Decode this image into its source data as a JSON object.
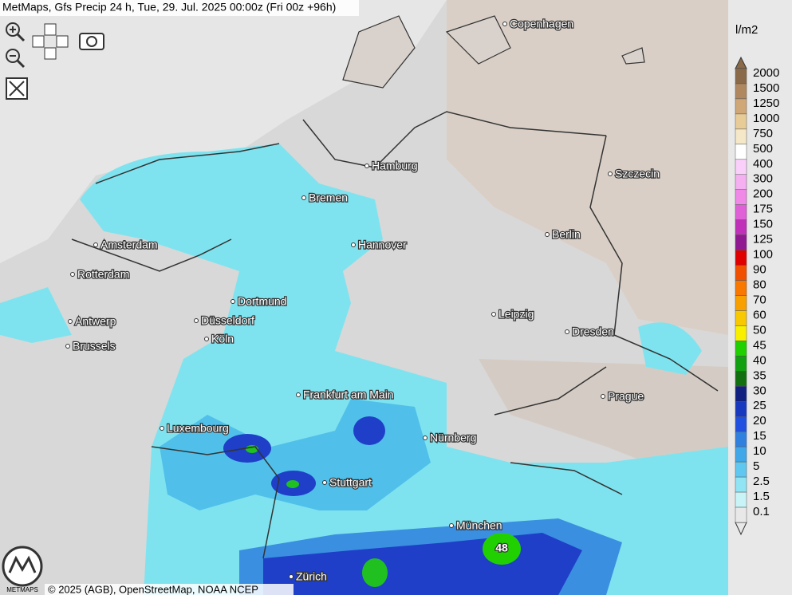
{
  "header": {
    "title": "MetMaps, Gfs Precip 24 h, Tue, 29. Jul. 2025 00:00z (Fri 00z +96h)"
  },
  "cities": [
    "Copenhagen",
    "Hamburg",
    "Szczecin",
    "Bremen",
    "Amsterdam",
    "Hannover",
    "Berlin",
    "Rotterdam",
    "Dortmund",
    "Leipzig",
    "Antwerp",
    "Düsseldorf",
    "Dresden",
    "Brussels",
    "Köln",
    "Prague",
    "Frankfurt am Main",
    "Luxembourg",
    "Nürnberg",
    "Stuttgart",
    "München",
    "Zürich"
  ],
  "peak_label": "48",
  "legend": {
    "unit": "l/m2",
    "items": [
      {
        "label": "2000",
        "color": "#8a6a48"
      },
      {
        "label": "1500",
        "color": "#b08860"
      },
      {
        "label": "1250",
        "color": "#d0a878"
      },
      {
        "label": "1000",
        "color": "#e8cc98"
      },
      {
        "label": "750",
        "color": "#f4e8c8"
      },
      {
        "label": "500",
        "color": "#ffffff"
      },
      {
        "label": "400",
        "color": "#fad0fa"
      },
      {
        "label": "300",
        "color": "#f4b0f0"
      },
      {
        "label": "200",
        "color": "#f088e8"
      },
      {
        "label": "175",
        "color": "#e060d8"
      },
      {
        "label": "150",
        "color": "#c030b8"
      },
      {
        "label": "125",
        "color": "#901890"
      },
      {
        "label": "100",
        "color": "#e00000"
      },
      {
        "label": "90",
        "color": "#f05000"
      },
      {
        "label": "80",
        "color": "#f87800"
      },
      {
        "label": "70",
        "color": "#f8a000"
      },
      {
        "label": "60",
        "color": "#f8c800"
      },
      {
        "label": "50",
        "color": "#f8f000"
      },
      {
        "label": "45",
        "color": "#20d000"
      },
      {
        "label": "40",
        "color": "#10a010"
      },
      {
        "label": "35",
        "color": "#107010"
      },
      {
        "label": "30",
        "color": "#102080"
      },
      {
        "label": "25",
        "color": "#1838c0"
      },
      {
        "label": "20",
        "color": "#2050e0"
      },
      {
        "label": "15",
        "color": "#3080e0"
      },
      {
        "label": "10",
        "color": "#40a8e8"
      },
      {
        "label": "5",
        "color": "#60c8f0"
      },
      {
        "label": "2.5",
        "color": "#90e4f4"
      },
      {
        "label": "1.5",
        "color": "#c8f4f8"
      },
      {
        "label": "0.1",
        "color": "#e8e8e8"
      }
    ]
  },
  "footer": {
    "copyright": "© 2025 (AGB), OpenStreetMap, NOAA NCEP",
    "logo_text": "METMAPS"
  }
}
